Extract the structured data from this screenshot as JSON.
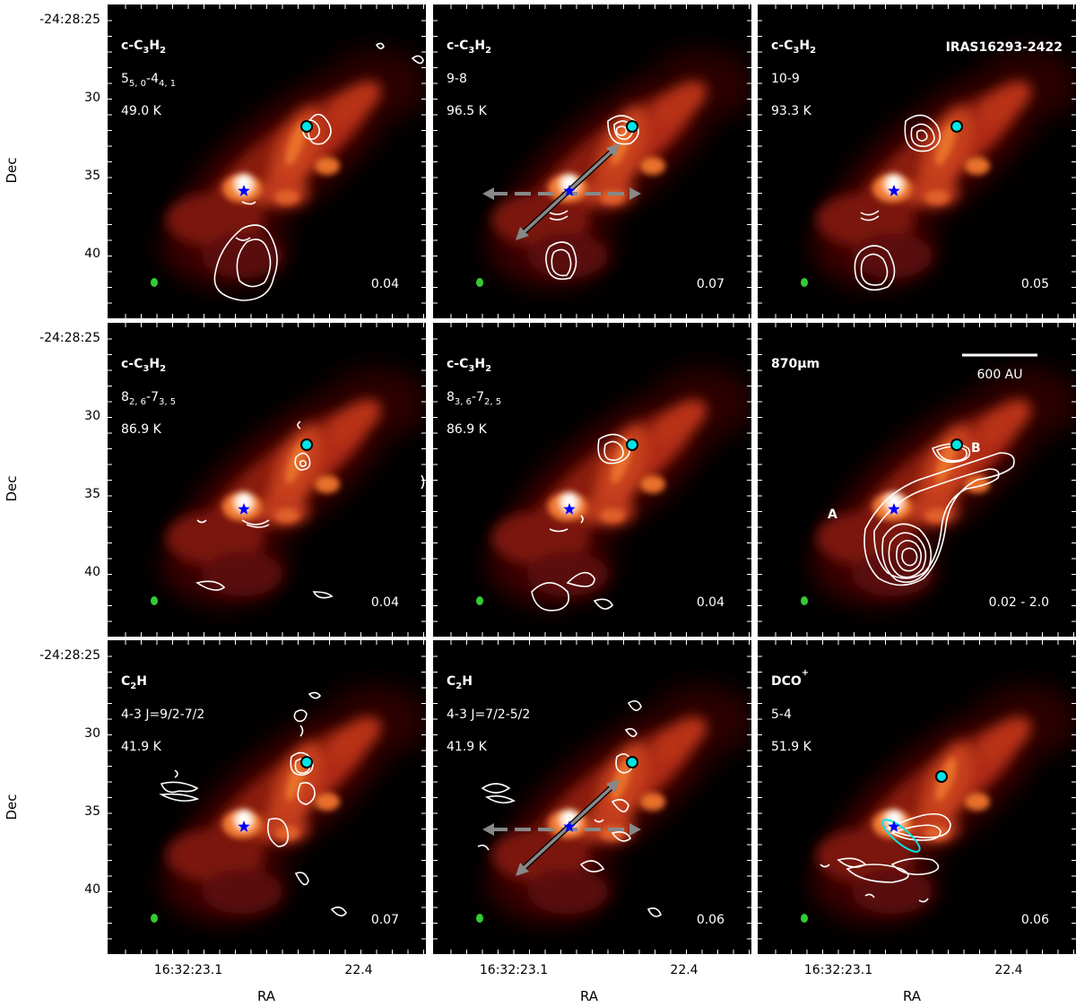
{
  "figure": {
    "x_axis_label": "RA",
    "y_axis_label": "Dec",
    "x_ticks": [
      "16:32:23.1",
      "22.4"
    ],
    "y_ticks": [
      "-24:28:25",
      "30",
      "35",
      "40"
    ],
    "source_name": "IRAS16293-2422",
    "scalebar_label": "600 AU",
    "source_A_label": "A",
    "source_B_label": "B",
    "panels": [
      {
        "id": "p1",
        "molecule": "c-C3H2",
        "mol_base": "c-C",
        "mol_sub1": "3",
        "mol_mid": "H",
        "mol_sub2": "2",
        "transition": "5",
        "t_sub1": "5, 0",
        "t_mid": "-4",
        "t_sub2": "4, 1",
        "energy": "49.0 K",
        "level": "0.04"
      },
      {
        "id": "p2",
        "molecule": "c-C3H2",
        "mol_base": "c-C",
        "mol_sub1": "3",
        "mol_mid": "H",
        "mol_sub2": "2",
        "transition": "9-8",
        "energy": "96.5 K",
        "level": "0.07"
      },
      {
        "id": "p3",
        "molecule": "c-C3H2",
        "mol_base": "c-C",
        "mol_sub1": "3",
        "mol_mid": "H",
        "mol_sub2": "2",
        "transition": "10-9",
        "energy": "93.3 K",
        "level": "0.05"
      },
      {
        "id": "p4",
        "molecule": "c-C3H2",
        "mol_base": "c-C",
        "mol_sub1": "3",
        "mol_mid": "H",
        "mol_sub2": "2",
        "transition": "8",
        "t_sub1": "2, 6",
        "t_mid": "-7",
        "t_sub2": "3, 5",
        "energy": "86.9 K",
        "level": "0.04"
      },
      {
        "id": "p5",
        "molecule": "c-C3H2",
        "mol_base": "c-C",
        "mol_sub1": "3",
        "mol_mid": "H",
        "mol_sub2": "2",
        "transition": "8",
        "t_sub1": "3, 6",
        "t_mid": "-7",
        "t_sub2": "2, 5",
        "energy": "86.9 K",
        "level": "0.04"
      },
      {
        "id": "p6",
        "molecule": "870μm",
        "transition": "",
        "energy": "",
        "level": "0.02 - 2.0"
      },
      {
        "id": "p7",
        "molecule": "C2H",
        "mol_base": "C",
        "mol_sub1": "2",
        "mol_mid": "H",
        "mol_sub2": "",
        "transition": "4-3 J=9/2-7/2",
        "energy": "41.9 K",
        "level": "0.07"
      },
      {
        "id": "p8",
        "molecule": "C2H",
        "mol_base": "C",
        "mol_sub1": "2",
        "mol_mid": "H",
        "mol_sub2": "",
        "transition": "4-3 J=7/2-5/2",
        "energy": "41.9 K",
        "level": "0.06"
      },
      {
        "id": "p9",
        "molecule": "DCO+",
        "mol_base": "DCO",
        "mol_sup": "+",
        "transition": "5-4",
        "energy": "51.9 K",
        "level": "0.06"
      }
    ],
    "colors": {
      "background": "#000000",
      "emission_core": "#ffffff",
      "emission_hot": "#f07a30",
      "emission_mid": "#c0301a",
      "emission_faint": "#5a0a05",
      "contour": "#ffffff",
      "star": "#0000ff",
      "source_B_marker": "#00e5e5",
      "beam": "#33cc33",
      "arrow": "#888888"
    },
    "markers": {
      "source_A_icon": "blue-star",
      "source_B_icon": "cyan-dot",
      "beam_icon": "green-ellipse"
    }
  }
}
